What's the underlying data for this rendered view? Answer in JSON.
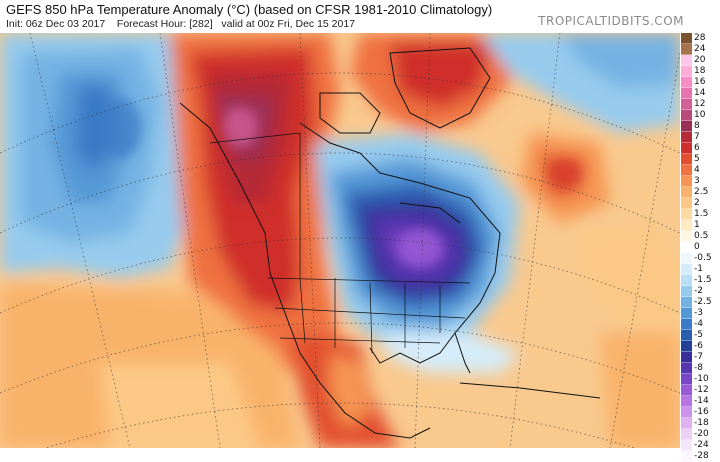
{
  "header": {
    "title": "GEFS 850 hPa Temperature Anomaly (°C) (based on CFSR 1981-2010 Climatology)",
    "init": "Init: 06z Dec 03 2017",
    "forecast_hour": "Forecast Hour: [282]",
    "valid": "valid at 00z Fri, Dec 15 2017",
    "brand": "TROPICALTIDBITS.COM"
  },
  "colorbar": [
    {
      "label": "28",
      "color": "#7a5230"
    },
    {
      "label": "24",
      "color": "#a8734a"
    },
    {
      "label": "20",
      "color": "#ffc6e9"
    },
    {
      "label": "18",
      "color": "#ffadd8"
    },
    {
      "label": "16",
      "color": "#f78ec6"
    },
    {
      "label": "14",
      "color": "#e874ae"
    },
    {
      "label": "12",
      "color": "#d35f98"
    },
    {
      "label": "10",
      "color": "#b84a7c"
    },
    {
      "label": "8",
      "color": "#9a2f55"
    },
    {
      "label": "7",
      "color": "#b52a34"
    },
    {
      "label": "6",
      "color": "#cf2f2a"
    },
    {
      "label": "5",
      "color": "#e24f2f"
    },
    {
      "label": "4",
      "color": "#ef7140"
    },
    {
      "label": "3",
      "color": "#f69553"
    },
    {
      "label": "2.5",
      "color": "#f9b26b"
    },
    {
      "label": "2",
      "color": "#fbc985"
    },
    {
      "label": "1.5",
      "color": "#fddba3"
    },
    {
      "label": "1",
      "color": "#feeac3"
    },
    {
      "label": "0.5",
      "color": "#fff6e3"
    },
    {
      "label": "0",
      "color": "#ffffff"
    },
    {
      "label": "-0.5",
      "color": "#eef7fd"
    },
    {
      "label": "-1",
      "color": "#d5ecfa"
    },
    {
      "label": "-1.5",
      "color": "#b8dff5"
    },
    {
      "label": "-2",
      "color": "#96cbee"
    },
    {
      "label": "-2.5",
      "color": "#74b2e3"
    },
    {
      "label": "-3",
      "color": "#5598d7"
    },
    {
      "label": "-4",
      "color": "#3b7ac6"
    },
    {
      "label": "-5",
      "color": "#2a5db0"
    },
    {
      "label": "-6",
      "color": "#233f97"
    },
    {
      "label": "-7",
      "color": "#3a2f9a"
    },
    {
      "label": "-8",
      "color": "#5735b0"
    },
    {
      "label": "-10",
      "color": "#7a45c6"
    },
    {
      "label": "-12",
      "color": "#9a5ad6"
    },
    {
      "label": "-14",
      "color": "#b774e2"
    },
    {
      "label": "-16",
      "color": "#cd92ea"
    },
    {
      "label": "-18",
      "color": "#dfb1f0"
    },
    {
      "label": "-20",
      "color": "#ecd0f5"
    },
    {
      "label": "-24",
      "color": "#f5e6fa"
    },
    {
      "label": "-28",
      "color": "#fbf5fd"
    }
  ]
}
